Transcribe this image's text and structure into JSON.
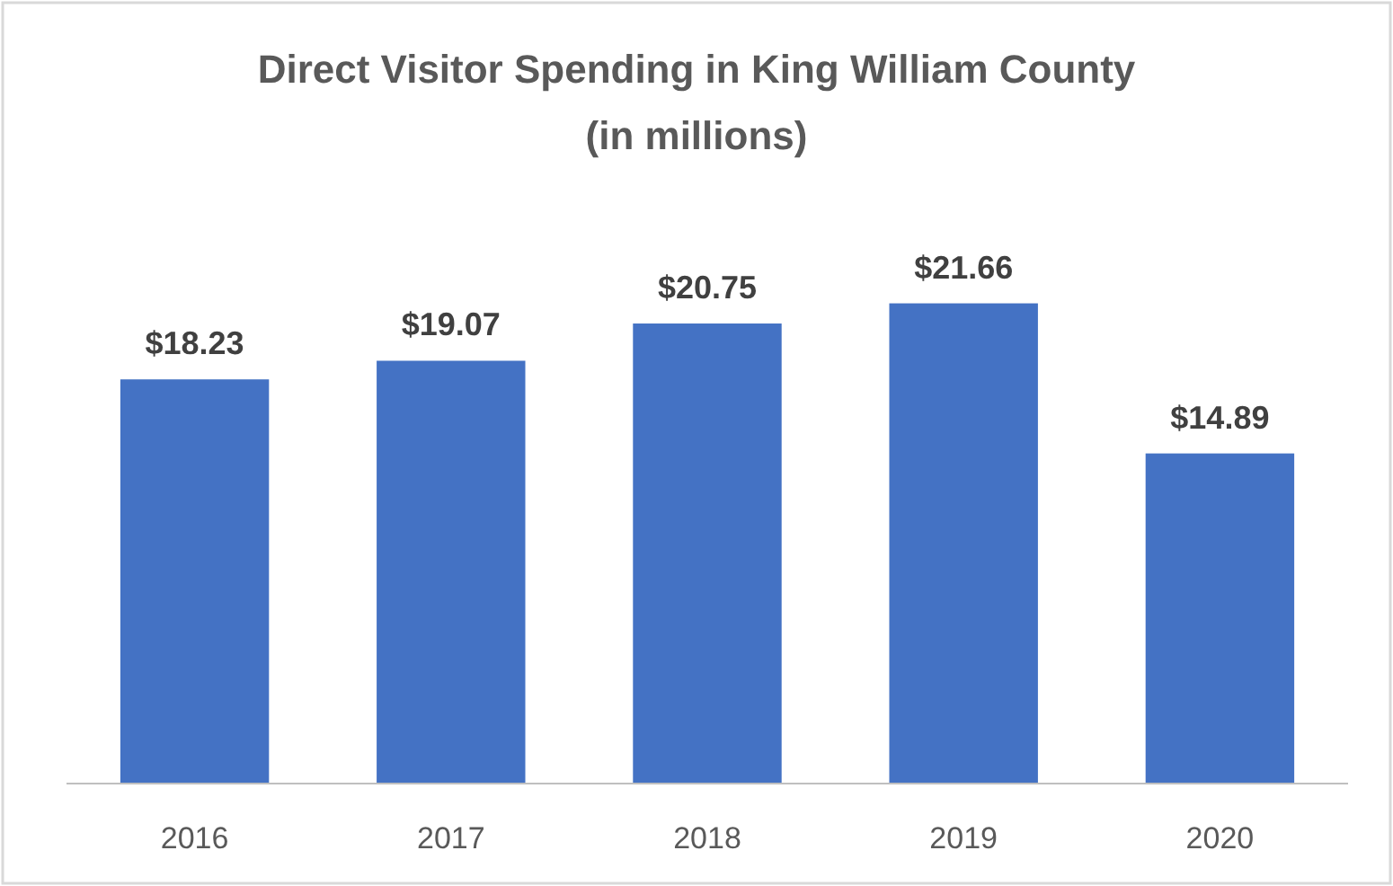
{
  "chart_data": {
    "type": "bar",
    "title": "Direct Visitor Spending in King William County",
    "subtitle": "(in millions)",
    "categories": [
      "2016",
      "2017",
      "2018",
      "2019",
      "2020"
    ],
    "values": [
      18.23,
      19.07,
      20.75,
      21.66,
      14.89
    ],
    "value_labels": [
      "$18.23",
      "$19.07",
      "$20.75",
      "$21.66",
      "$14.89"
    ],
    "color": "#4472c4"
  }
}
